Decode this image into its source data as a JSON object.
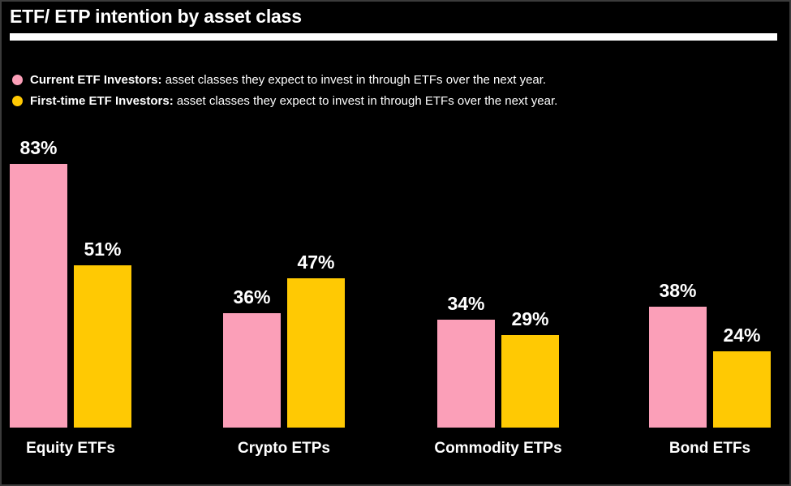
{
  "title": "ETF/ ETP intention by asset class",
  "legend": {
    "items": [
      {
        "marker": "pink-dot-icon",
        "color": "#FB9FB8",
        "label": "Current ETF Investors:",
        "description": " asset classes they expect to invest in through ETFs over the next year."
      },
      {
        "marker": "yellow-dot-icon",
        "color": "#FFC903",
        "label": "First-time ETF Investors:",
        "description": " asset classes they expect to invest in through ETFs over the next year."
      }
    ]
  },
  "chart_data": {
    "type": "bar",
    "title": "ETF/ ETP intention by asset class",
    "categories": [
      "Equity ETFs",
      "Crypto ETPs",
      "Commodity ETPs",
      "Bond ETFs"
    ],
    "series": [
      {
        "name": "Current ETF Investors",
        "color": "#FB9FB8",
        "values": [
          83,
          36,
          34,
          38
        ]
      },
      {
        "name": "First-time ETF Investors",
        "color": "#FFC903",
        "values": [
          51,
          47,
          29,
          24
        ]
      }
    ],
    "value_suffix": "%",
    "value_labels": true,
    "xlabel": "",
    "ylabel": "",
    "axes_visible": false,
    "grid": false,
    "legend_position": "top-left",
    "background_color": "#000000",
    "text_color": "#FFFFFF"
  }
}
